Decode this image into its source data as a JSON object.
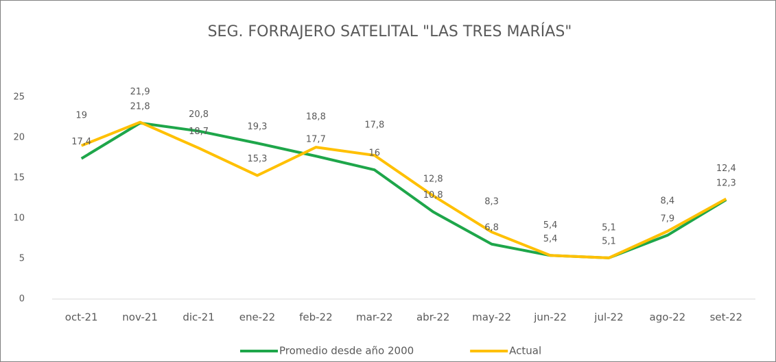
{
  "chart_data": {
    "type": "line",
    "title": "SEG. FORRAJERO SATELITAL \"LAS TRES MARÍAS\"",
    "categories": [
      "oct-21",
      "nov-21",
      "dic-21",
      "ene-22",
      "feb-22",
      "mar-22",
      "abr-22",
      "may-22",
      "jun-22",
      "jul-22",
      "ago-22",
      "set-22"
    ],
    "series": [
      {
        "name": "Promedio desde año 2000",
        "color": "#1ea64a",
        "values": [
          17.4,
          21.8,
          20.8,
          19.3,
          17.7,
          16,
          10.8,
          6.8,
          5.4,
          5.1,
          7.9,
          12.3
        ],
        "value_labels": [
          "17,4",
          "21,8",
          "20,8",
          "19,3",
          "17,7",
          "16",
          "10,8",
          "6,8",
          "5,4",
          "5,1",
          "7,9",
          "12,3"
        ]
      },
      {
        "name": "Actual",
        "color": "#ffc000",
        "values": [
          19,
          21.9,
          18.7,
          15.3,
          18.8,
          17.8,
          12.8,
          8.3,
          5.4,
          5.1,
          8.4,
          12.4
        ],
        "value_labels": [
          "19",
          "21,9",
          "18,7",
          "15,3",
          "18,8",
          "17,8",
          "12,8",
          "8,3",
          "5,4",
          "5,1",
          "8,4",
          "12,4"
        ]
      }
    ],
    "ylim": [
      0,
      25
    ],
    "yticks": [
      0,
      5,
      10,
      15,
      20,
      25
    ],
    "grid": false,
    "legend": "bottom"
  }
}
